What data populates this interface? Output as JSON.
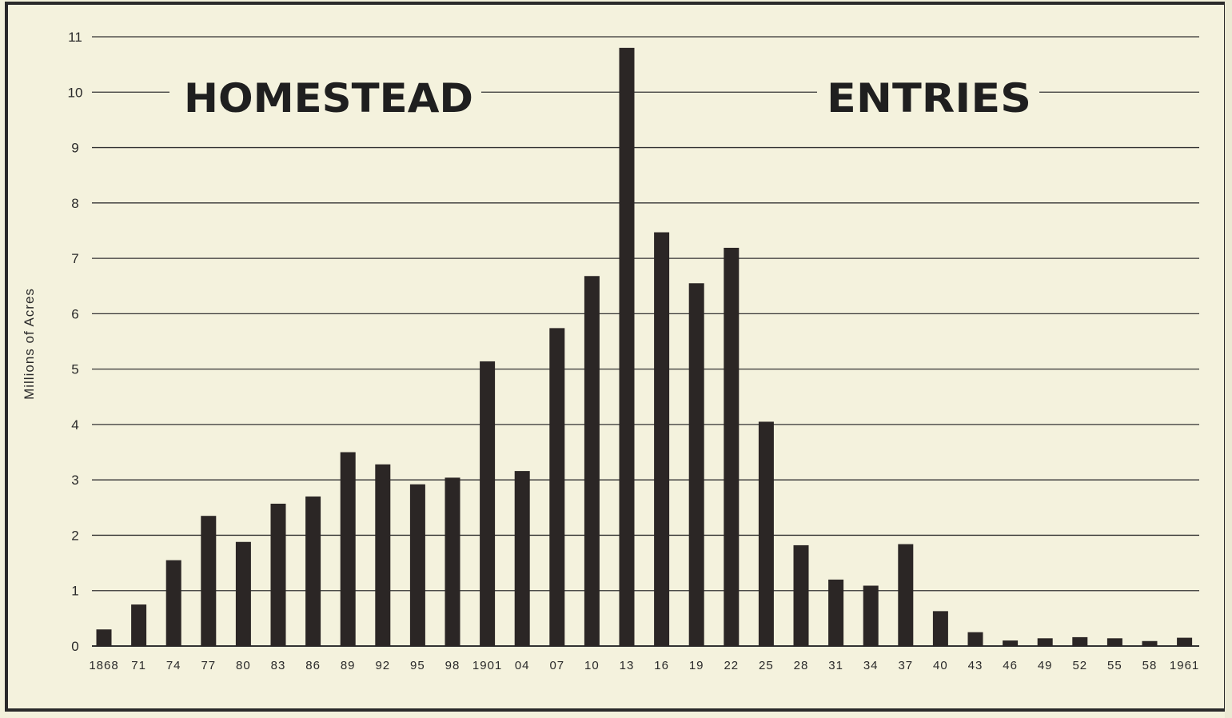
{
  "chart_data": {
    "type": "bar",
    "title_left": "HOMESTEAD",
    "title_right": "ENTRIES",
    "ylabel": "Millions of Acres",
    "xlabel": "",
    "ylim": [
      0,
      11
    ],
    "yticks": [
      0,
      1,
      2,
      3,
      4,
      5,
      6,
      7,
      8,
      9,
      10,
      11
    ],
    "grid": true,
    "categories": [
      "1868",
      "71",
      "74",
      "77",
      "80",
      "83",
      "86",
      "89",
      "92",
      "95",
      "98",
      "1901",
      "04",
      "07",
      "10",
      "13",
      "16",
      "19",
      "22",
      "25",
      "28",
      "31",
      "34",
      "37",
      "40",
      "43",
      "46",
      "49",
      "52",
      "55",
      "58",
      "1961"
    ],
    "values": [
      0.3,
      0.75,
      1.55,
      2.35,
      1.88,
      2.57,
      2.7,
      3.5,
      3.28,
      2.92,
      3.04,
      5.14,
      3.16,
      5.74,
      6.68,
      10.8,
      7.47,
      6.55,
      7.19,
      4.05,
      1.82,
      1.2,
      1.09,
      1.84,
      0.63,
      0.25,
      0.1,
      0.14,
      0.16,
      0.14,
      0.09,
      0.15
    ]
  },
  "colors": {
    "background": "#f4f2dd",
    "bar": "#2b2625",
    "grid": "#333333",
    "text": "#2a2a2a"
  }
}
